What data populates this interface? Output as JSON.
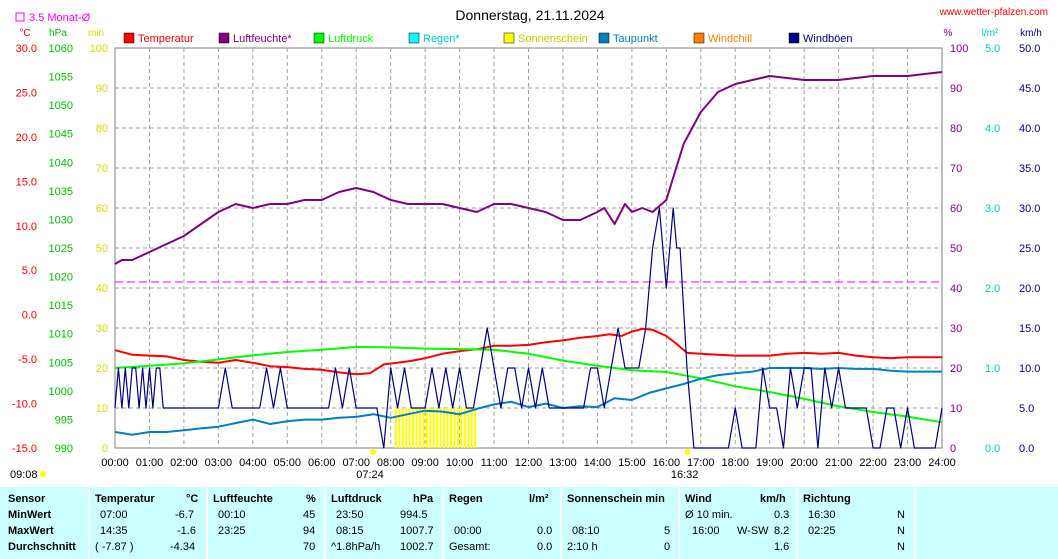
{
  "chart_data": {
    "type": "line",
    "title": "Donnerstag, 21.11.2024",
    "source": "www.wetter-pfalzen.com",
    "reference_line_label": "3.5 Monat-Ø",
    "reference_line_value_percent": 41.5,
    "x_ticks": [
      "00:00",
      "01:00",
      "02:00",
      "03:00",
      "04:00",
      "05:00",
      "06:00",
      "07:00",
      "08:00",
      "09:00",
      "10:00",
      "11:00",
      "12:00",
      "13:00",
      "14:00",
      "15:00",
      "16:00",
      "17:00",
      "18:00",
      "19:00",
      "20:00",
      "21:00",
      "22:00",
      "23:00",
      "24:00"
    ],
    "x_range_hours": [
      0,
      24
    ],
    "x_markers": [
      {
        "label": "07:24",
        "hour": 7.4
      },
      {
        "label": "16:32",
        "hour": 16.53
      }
    ],
    "sunrise_label": "09:08",
    "axes": {
      "temp_c": {
        "unit": "°C",
        "min": -15,
        "max": 30,
        "ticks": [
          "30.0",
          "25.0",
          "20.0",
          "15.0",
          "10.0",
          "5.0",
          "0.0",
          "-5.0",
          "-10.0",
          "-15.0"
        ]
      },
      "pressure_hpa": {
        "unit": "hPa",
        "min": 990,
        "max": 1060,
        "ticks": [
          "1060",
          "1055",
          "1050",
          "1045",
          "1040",
          "1035",
          "1030",
          "1025",
          "1020",
          "1015",
          "1010",
          "1005",
          "1000",
          "995",
          "990"
        ]
      },
      "sun_min": {
        "unit": "min",
        "min": 0,
        "max": 100,
        "ticks": [
          "100",
          "90",
          "80",
          "70",
          "60",
          "50",
          "40",
          "30",
          "20",
          "10",
          "0"
        ]
      },
      "humidity_pct": {
        "unit": "%",
        "min": 0,
        "max": 100,
        "ticks": [
          "100",
          "90",
          "80",
          "70",
          "60",
          "50",
          "40",
          "30",
          "20",
          "10",
          "0"
        ]
      },
      "rain_lm2": {
        "unit": "l/m²",
        "min": 0,
        "max": 5,
        "ticks": [
          "5.0",
          "4.0",
          "3.0",
          "2.0",
          "1.0",
          "0.0"
        ]
      },
      "wind_kmh": {
        "unit": "km/h",
        "min": 0,
        "max": 50,
        "ticks": [
          "50.0",
          "45.0",
          "40.0",
          "35.0",
          "30.0",
          "25.0",
          "20.0",
          "15.0",
          "10.0",
          "5.0",
          "0.0"
        ]
      }
    },
    "legend": [
      {
        "name": "Temperatur",
        "color": "#ff0000"
      },
      {
        "name": "Luftfeuchte*",
        "color": "#800080"
      },
      {
        "name": "Luftdruck",
        "color": "#00ff00"
      },
      {
        "name": "Regen*",
        "color": "#00ffff"
      },
      {
        "name": "Sonnenschein",
        "color": "#ffff00"
      },
      {
        "name": "Taupunkt",
        "color": "#0080c0"
      },
      {
        "name": "Windchill",
        "color": "#ff8000"
      },
      {
        "name": "Windböen",
        "color": "#000080"
      }
    ],
    "series": [
      {
        "name": "Temperatur",
        "axis": "temp_c",
        "x": [
          0,
          0.5,
          1,
          1.5,
          2,
          2.5,
          3,
          3.5,
          4,
          4.5,
          5,
          5.5,
          6,
          6.5,
          7,
          7.4,
          7.8,
          8.2,
          8.6,
          9,
          9.5,
          10,
          10.5,
          11,
          11.5,
          12,
          12.5,
          13,
          13.5,
          14,
          14.35,
          14.7,
          15,
          15.3,
          15.6,
          16,
          16.3,
          16.6,
          17,
          17.5,
          18,
          18.5,
          19,
          19.5,
          20,
          20.5,
          21,
          21.5,
          22,
          22.5,
          23,
          23.5,
          24
        ],
        "y": [
          -4,
          -4.5,
          -4.6,
          -4.7,
          -5.1,
          -5.3,
          -5.4,
          -5.1,
          -5.4,
          -5.8,
          -5.9,
          -6.1,
          -6.2,
          -6.5,
          -6.7,
          -6.6,
          -5.6,
          -5.4,
          -5.2,
          -4.9,
          -4.4,
          -4.1,
          -3.9,
          -3.5,
          -3.5,
          -3.4,
          -3.1,
          -2.9,
          -2.6,
          -2.4,
          -2.2,
          -2.4,
          -1.9,
          -1.6,
          -1.7,
          -2.4,
          -3.3,
          -4.3,
          -4.4,
          -4.5,
          -4.6,
          -4.6,
          -4.6,
          -4.4,
          -4.3,
          -4.4,
          -4.3,
          -4.6,
          -4.8,
          -4.9,
          -4.8,
          -4.8,
          -4.8
        ]
      },
      {
        "name": "Luftfeuchte*",
        "axis": "humidity_pct",
        "x": [
          0,
          0.2,
          0.5,
          1,
          1.5,
          2,
          2.5,
          3,
          3.5,
          4,
          4.5,
          5,
          5.5,
          6,
          6.5,
          7,
          7.5,
          8,
          8.5,
          9,
          9.5,
          10,
          10.5,
          11,
          11.5,
          12,
          12.5,
          13,
          13.5,
          14,
          14.2,
          14.5,
          14.8,
          15,
          15.3,
          15.6,
          16,
          16.5,
          17,
          17.5,
          18,
          18.5,
          19,
          20,
          21,
          22,
          23,
          24
        ],
        "y": [
          46,
          47,
          47,
          49,
          51,
          53,
          56,
          59,
          61,
          60,
          61,
          61,
          62,
          62,
          64,
          65,
          64,
          62,
          61,
          61,
          61,
          60,
          59,
          61,
          61,
          60,
          59,
          57,
          57,
          59,
          60,
          56,
          61,
          59,
          60,
          59,
          62,
          76,
          84,
          89,
          91,
          92,
          93,
          92,
          92,
          93,
          93,
          94
        ]
      },
      {
        "name": "Luftdruck",
        "axis": "pressure_hpa",
        "x": [
          0,
          1,
          2,
          3,
          4,
          5,
          6,
          7,
          8,
          9,
          10,
          11,
          12,
          13,
          14,
          15,
          16,
          17,
          18,
          19,
          20,
          21,
          22,
          23,
          24
        ],
        "y": [
          1004,
          1004.4,
          1004.8,
          1005.5,
          1006.2,
          1006.8,
          1007.2,
          1007.7,
          1007.6,
          1007.4,
          1007.3,
          1007.2,
          1006.5,
          1005.3,
          1004.4,
          1003.6,
          1003.3,
          1002.2,
          1000.8,
          999.8,
          998.6,
          997.3,
          996.3,
          995.5,
          994.5
        ]
      },
      {
        "name": "Taupunkt",
        "axis": "temp_c",
        "x": [
          0,
          0.5,
          1,
          1.5,
          2,
          2.5,
          3,
          3.5,
          4,
          4.5,
          5,
          5.5,
          6,
          6.5,
          7,
          7.5,
          8,
          8.5,
          9,
          9.5,
          10,
          10.5,
          11,
          11.5,
          12,
          12.5,
          13,
          13.5,
          14,
          14.5,
          15,
          15.5,
          16,
          16.5,
          17,
          17.5,
          18,
          18.5,
          19,
          19.5,
          20,
          20.5,
          21,
          21.5,
          22,
          22.5,
          23,
          23.5,
          24
        ],
        "y": [
          -13.2,
          -13.5,
          -13.2,
          -13.2,
          -13.0,
          -12.8,
          -12.6,
          -12.2,
          -11.8,
          -12.3,
          -12.0,
          -11.8,
          -11.8,
          -11.6,
          -11.5,
          -11.2,
          -11.6,
          -11.2,
          -10.8,
          -10.9,
          -11.2,
          -10.6,
          -10.1,
          -9.8,
          -10.4,
          -10.0,
          -10.5,
          -10.3,
          -10.4,
          -9.4,
          -9.6,
          -8.8,
          -8.3,
          -7.8,
          -7.2,
          -6.8,
          -6.6,
          -6.4,
          -6.0,
          -6.0,
          -6.0,
          -6.1,
          -6.0,
          -6.1,
          -6.1,
          -6.3,
          -6.4,
          -6.4,
          -6.4
        ]
      },
      {
        "name": "Windböen",
        "axis": "wind_kmh",
        "x": [
          0,
          0.1,
          0.2,
          0.3,
          0.4,
          0.5,
          0.6,
          0.7,
          0.8,
          0.9,
          1,
          1.1,
          1.2,
          1.3,
          1.4,
          1.5,
          1.6,
          1.7,
          1.8,
          1.9,
          2,
          2.2,
          2.4,
          2.6,
          2.8,
          3,
          3.2,
          3.4,
          3.6,
          3.8,
          4,
          4.2,
          4.4,
          4.6,
          4.8,
          5,
          5.2,
          5.4,
          5.6,
          5.8,
          6,
          6.2,
          6.4,
          6.6,
          6.8,
          7,
          7.2,
          7.4,
          7.6,
          7.8,
          8,
          8.2,
          8.4,
          8.6,
          8.8,
          9,
          9.2,
          9.4,
          9.6,
          9.8,
          10,
          10.2,
          10.4,
          10.6,
          10.8,
          11,
          11.2,
          11.4,
          11.6,
          11.8,
          12,
          12.2,
          12.4,
          12.6,
          12.8,
          13,
          13.2,
          13.4,
          13.6,
          13.8,
          14,
          14.2,
          14.4,
          14.6,
          14.8,
          15,
          15.2,
          15.4,
          15.6,
          15.8,
          16,
          16.1,
          16.2,
          16.3,
          16.4,
          16.6,
          16.8,
          17,
          17.5,
          17.6,
          17.8,
          18,
          18.2,
          18.4,
          18.6,
          18.8,
          19,
          19.2,
          19.4,
          19.6,
          19.8,
          20,
          20.2,
          20.4,
          20.6,
          20.8,
          21,
          21.2,
          21.4,
          21.6,
          21.8,
          22,
          22.2,
          22.4,
          22.6,
          22.8,
          23,
          23.2,
          23.4,
          23.6,
          23.8,
          24
        ],
        "y": [
          5,
          10,
          5,
          10,
          5,
          10,
          10,
          5,
          10,
          5,
          10,
          5,
          10,
          10,
          5,
          5,
          5,
          5,
          5,
          5,
          5,
          5,
          5,
          5,
          5,
          5,
          10,
          5,
          5,
          5,
          5,
          5,
          10,
          5,
          10,
          5,
          5,
          5,
          5,
          5,
          5,
          5,
          10,
          5,
          10,
          5,
          5,
          5,
          5,
          0,
          10,
          5,
          10,
          5,
          5,
          5,
          10,
          5,
          10,
          5,
          10,
          5,
          5,
          10,
          15,
          10,
          5,
          10,
          10,
          5,
          10,
          5,
          10,
          5,
          5,
          5,
          5,
          5,
          5,
          10,
          10,
          5,
          10,
          15,
          10,
          10,
          10,
          15,
          25,
          30,
          20,
          25,
          30,
          25,
          25,
          10,
          0,
          0,
          0,
          0,
          0,
          5,
          0,
          0,
          0,
          10,
          5,
          5,
          0,
          10,
          5,
          10,
          10,
          0,
          10,
          5,
          10,
          5,
          5,
          5,
          5,
          0,
          0,
          5,
          5,
          0,
          5,
          0,
          0,
          0,
          0,
          5
        ]
      }
    ],
    "sunshine_bars": {
      "axis": "sun_min",
      "from_hour": 8.15,
      "to_hour": 10.5,
      "value": 5,
      "color": "#ffff00"
    }
  },
  "stats": {
    "sensor": {
      "header": "Sensor",
      "rows": [
        "MinWert",
        "MaxWert",
        "Durchschnitt"
      ]
    },
    "temperature": {
      "header": "Temperatur",
      "unit": "°C",
      "min_time": "07:00",
      "min_value": "-6.7",
      "max_time": "14:35",
      "max_value": "-1.6",
      "avg_time": "( -7.87 )",
      "avg_value": "-4.34"
    },
    "humidity": {
      "header": "Luftfeuchte",
      "unit": "%",
      "min_time": "00:10",
      "min_value": "45",
      "max_time": "23:25",
      "max_value": "94",
      "avg_value": "70"
    },
    "pressure": {
      "header": "Luftdruck",
      "unit": "hPa",
      "min_time": "23:50",
      "min_value": "994.5",
      "max_time": "08:15",
      "max_value": "1007.7",
      "avg_time": "^1.8hPa/h",
      "avg_value": "1002.7"
    },
    "rain": {
      "header": "Regen",
      "unit": "l/m²",
      "max_time": "00:00",
      "max_value": "0.0",
      "avg_time": "Gesamt:",
      "avg_value": "0.0"
    },
    "sunshine": {
      "header": "Sonnenschein min",
      "max_time": "08:10",
      "max_value": "5",
      "avg_time": "2:10 h",
      "avg_value": "0"
    },
    "wind": {
      "header": "Wind",
      "unit": "km/h",
      "min_label": "Ø 10 min.",
      "min_value": "0.3",
      "max_time": "16:00",
      "max_dir": "W-SW",
      "max_value": "8.2",
      "avg_value": "1.6"
    },
    "direction": {
      "header": "Richtung",
      "min_time": "16:30",
      "min_value": "N",
      "max_time": "02:25",
      "max_value": "N",
      "avg_value": "N"
    }
  }
}
